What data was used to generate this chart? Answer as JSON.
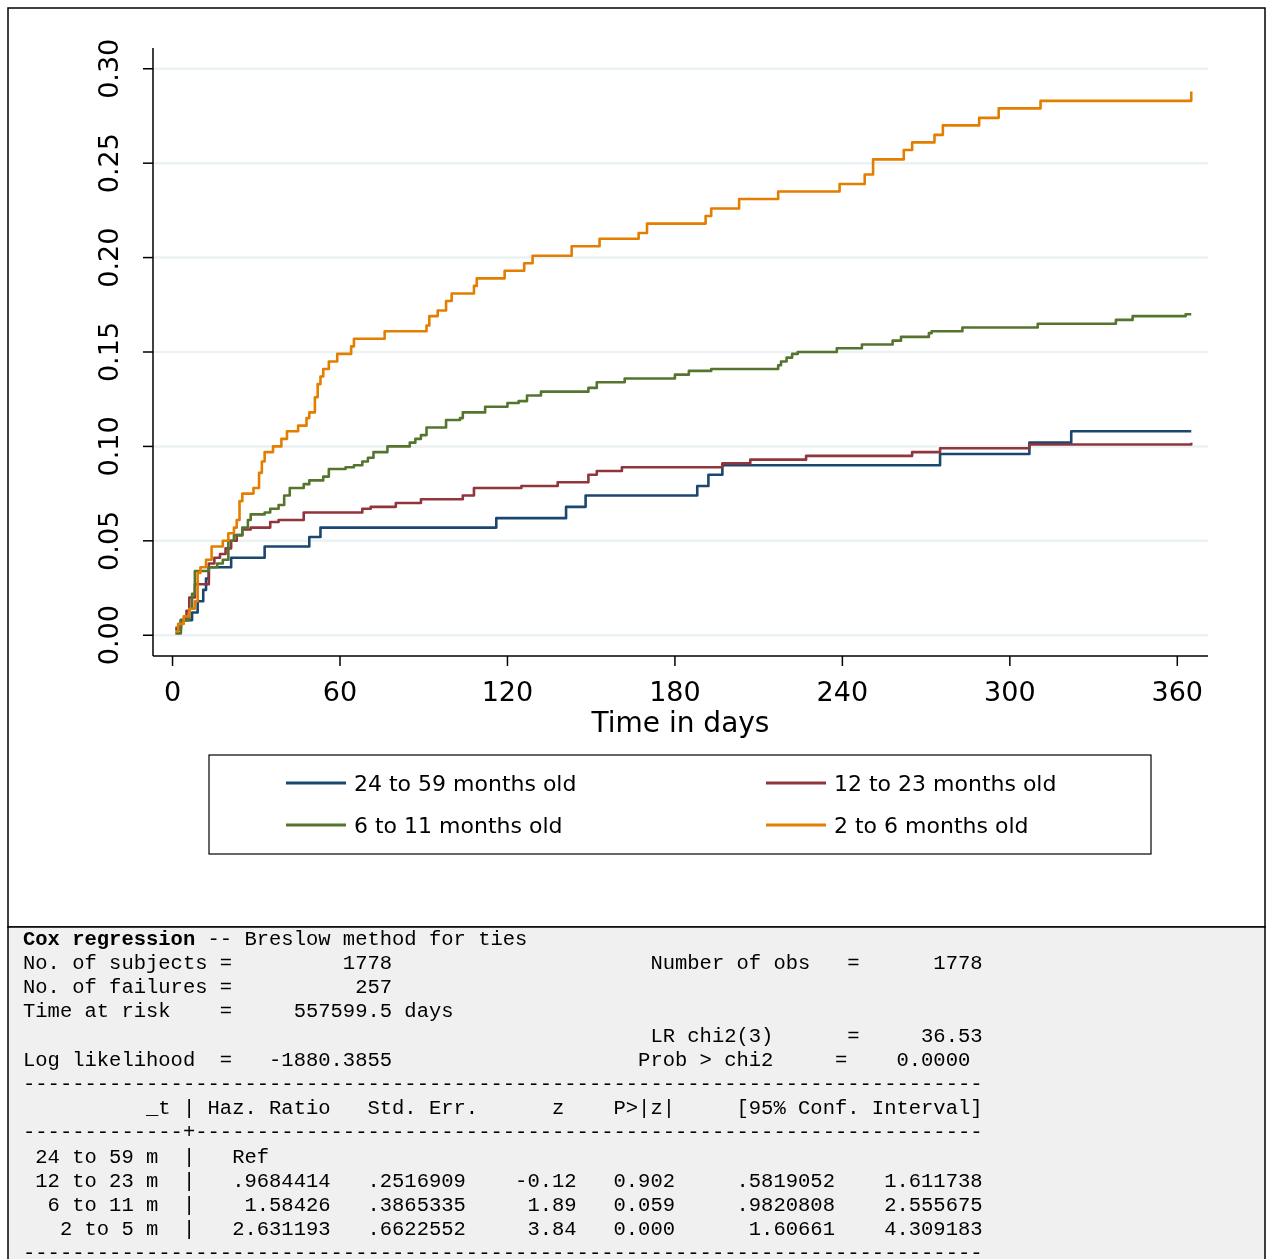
{
  "chart_data": {
    "type": "step",
    "xlabel": "Time in days",
    "xlim": [
      -7,
      371
    ],
    "xticks": [
      0,
      60,
      120,
      180,
      240,
      300,
      360
    ],
    "ylim": [
      -0.011,
      0.311
    ],
    "yticks": [
      {
        "value": 0,
        "label": "0.00"
      },
      {
        "value": 0.05,
        "label": "0.05"
      },
      {
        "value": 0.1,
        "label": "0.10"
      },
      {
        "value": 0.15,
        "label": "0.15"
      },
      {
        "value": 0.2,
        "label": "0.20"
      },
      {
        "value": 0.25,
        "label": "0.25"
      },
      {
        "value": 0.3,
        "label": "0.30"
      }
    ],
    "grid": "y",
    "legend": "bottom",
    "line_style": "solid",
    "marker": "none",
    "series": [
      {
        "name": "24 to 59 months old",
        "color": "#1a476f",
        "x": [
          1,
          3,
          7,
          9,
          11,
          12,
          13,
          21,
          33,
          49,
          53,
          116,
          141,
          148,
          188,
          192,
          197,
          275,
          307,
          322,
          365
        ],
        "values": [
          0.003,
          0.008,
          0.012,
          0.018,
          0.024,
          0.03,
          0.036,
          0.041,
          0.047,
          0.052,
          0.057,
          0.062,
          0.068,
          0.074,
          0.079,
          0.085,
          0.09,
          0.096,
          0.102,
          0.108,
          0.108
        ]
      },
      {
        "name": "12 to 23 months old",
        "color": "#90353b",
        "x": [
          1,
          3,
          5,
          6,
          8,
          13,
          15,
          17,
          19,
          21,
          23,
          25,
          28,
          35,
          38,
          47,
          68,
          71,
          80,
          89,
          104,
          108,
          125,
          138,
          149,
          152,
          161,
          197,
          207,
          227,
          265,
          275,
          307,
          365
        ],
        "values": [
          0.004,
          0.008,
          0.013,
          0.02,
          0.027,
          0.038,
          0.041,
          0.043,
          0.046,
          0.05,
          0.053,
          0.056,
          0.057,
          0.06,
          0.061,
          0.065,
          0.067,
          0.068,
          0.07,
          0.072,
          0.074,
          0.078,
          0.079,
          0.081,
          0.085,
          0.087,
          0.089,
          0.091,
          0.093,
          0.095,
          0.097,
          0.099,
          0.101,
          0.102
        ]
      },
      {
        "name": "6 to 11 months old",
        "color": "#55752f",
        "x": [
          1,
          3,
          6,
          7,
          8,
          13,
          16,
          18,
          20,
          22,
          25,
          27,
          28,
          33,
          35,
          38,
          40,
          42,
          47,
          49,
          54,
          56,
          62,
          65,
          68,
          70,
          72,
          77,
          85,
          87,
          89,
          91,
          98,
          103,
          104,
          112,
          120,
          124,
          127,
          132,
          149,
          152,
          162,
          180,
          185,
          193,
          217,
          218,
          220,
          222,
          224,
          238,
          247,
          258,
          261,
          271,
          272,
          283,
          310,
          338,
          344,
          363,
          365
        ],
        "values": [
          0.001,
          0.008,
          0.014,
          0.022,
          0.034,
          0.036,
          0.038,
          0.04,
          0.05,
          0.053,
          0.057,
          0.061,
          0.064,
          0.065,
          0.067,
          0.069,
          0.074,
          0.078,
          0.08,
          0.082,
          0.084,
          0.088,
          0.089,
          0.09,
          0.092,
          0.094,
          0.097,
          0.1,
          0.102,
          0.104,
          0.106,
          0.11,
          0.114,
          0.115,
          0.118,
          0.121,
          0.123,
          0.124,
          0.127,
          0.129,
          0.131,
          0.134,
          0.136,
          0.138,
          0.14,
          0.141,
          0.143,
          0.145,
          0.147,
          0.149,
          0.15,
          0.152,
          0.154,
          0.156,
          0.158,
          0.16,
          0.161,
          0.163,
          0.165,
          0.167,
          0.169,
          0.17,
          0.17
        ]
      },
      {
        "name": "2 to 6 months old",
        "color": "#e37e00",
        "x": [
          1,
          2,
          4,
          6,
          8,
          9,
          10,
          12,
          14,
          18,
          20,
          22,
          23,
          24,
          25,
          29,
          31,
          32,
          33,
          36,
          39,
          41,
          45,
          48,
          49,
          51,
          52,
          53,
          54,
          56,
          59,
          64,
          65,
          76,
          91,
          92,
          95,
          98,
          100,
          108,
          109,
          119,
          126,
          129,
          143,
          153,
          167,
          170,
          191,
          193,
          203,
          217,
          239,
          248,
          251,
          262,
          265,
          273,
          276,
          289,
          296,
          311,
          365
        ],
        "values": [
          0.002,
          0.006,
          0.01,
          0.014,
          0.018,
          0.033,
          0.036,
          0.04,
          0.047,
          0.05,
          0.054,
          0.057,
          0.061,
          0.071,
          0.075,
          0.078,
          0.086,
          0.092,
          0.097,
          0.1,
          0.104,
          0.108,
          0.111,
          0.115,
          0.118,
          0.126,
          0.133,
          0.137,
          0.141,
          0.145,
          0.149,
          0.153,
          0.157,
          0.161,
          0.164,
          0.169,
          0.172,
          0.177,
          0.181,
          0.185,
          0.189,
          0.193,
          0.197,
          0.201,
          0.206,
          0.21,
          0.213,
          0.218,
          0.222,
          0.226,
          0.231,
          0.235,
          0.239,
          0.244,
          0.252,
          0.257,
          0.261,
          0.265,
          0.27,
          0.274,
          0.279,
          0.283,
          0.288
        ]
      }
    ],
    "annotations": [
      "Cox regression",
      "-- Breslow method for ties",
      "No. of subjects =         1778                     Number of obs   =      1778",
      "No. of failures =          257",
      "Time at risk    =     557599.5 days",
      "                                                   LR chi2(3)      =     36.53",
      "Log likelihood  =   -1880.3855                    Prob > chi2     =    0.0000",
      "------------------------------------------------------------------------------",
      "          _t | Haz. Ratio   Std. Err.      z    P>|z|     [95% Conf. Interval]",
      "-------------+----------------------------------------------------------------",
      " 24 to 59 m  |   Ref",
      " 12 to 23 m  |   .9684414   .2516909    -0.12   0.902     .5819052    1.611738",
      "  6 to 11 m  |    1.58426   .3865335     1.89   0.059     .9820808    2.555675",
      "   2 to 5 m  |   2.631193   .6622552     3.84   0.000      1.60661    4.309183",
      "------------------------------------------------------------------------------"
    ]
  }
}
